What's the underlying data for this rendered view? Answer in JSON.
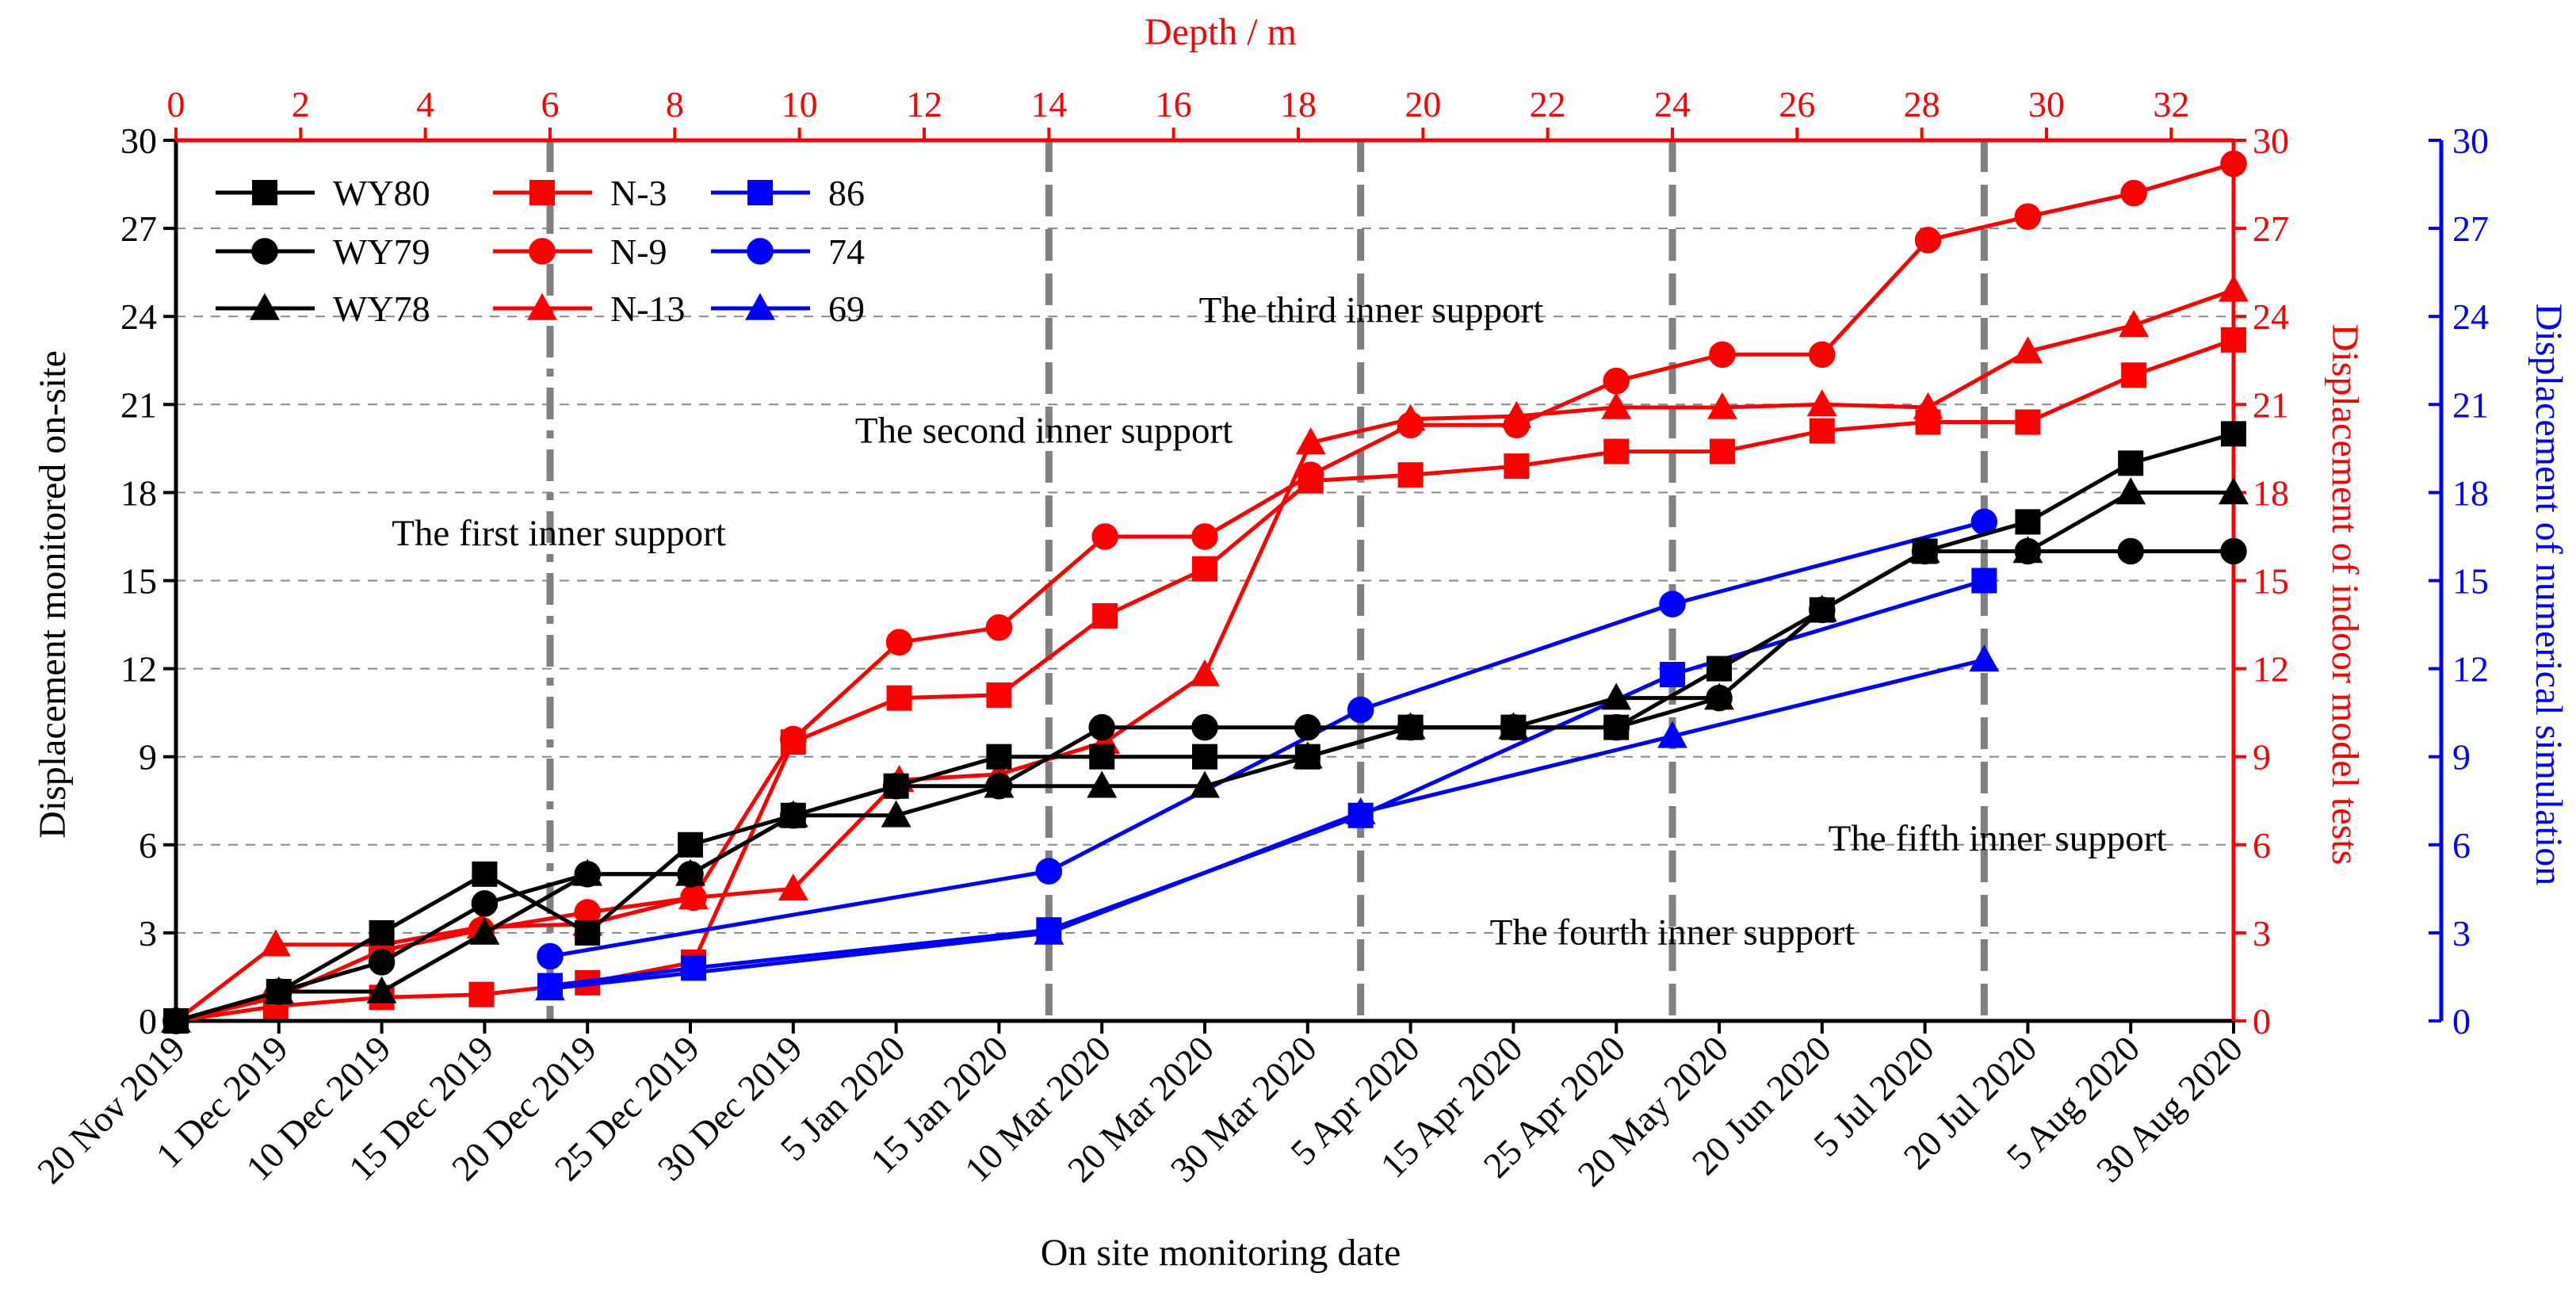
{
  "chart_data": {
    "type": "line",
    "xlabel_bottom": "On site monitoring date",
    "xlabel_top": "Depth / m",
    "ylabel_left": "Displacement monitored on-site",
    "ylabel_right1": "Displacement of indoor model tests",
    "ylabel_right2": "Displacement of numerical simulation",
    "ylim": [
      0,
      30
    ],
    "yticks": [
      0,
      3,
      6,
      9,
      12,
      15,
      18,
      21,
      24,
      27,
      30
    ],
    "grid": "horizontal dashed at every 3 units",
    "legend_position": "top-left",
    "colors": {
      "onsite": "#000000",
      "model": "#ff0000",
      "numerical": "#0000ff",
      "support_line": "#808080",
      "grid": "#888888"
    },
    "categories": [
      "20 Nov 2019",
      "1 Dec 2019",
      "10 Dec 2019",
      "15 Dec 2019",
      "20 Dec 2019",
      "25 Dec 2019",
      "30 Dec 2019",
      "5 Jan 2020",
      "15 Jan 2020",
      "10 Mar 2020",
      "20 Mar 2020",
      "30 Mar 2020",
      "5 Apr 2020",
      "15 Apr 2020",
      "25 Apr 2020",
      "20 May 2020",
      "20 Jun 2020",
      "5 Jul 2020",
      "20 Jul 2020",
      "5 Aug 2020",
      "30 Aug 2020"
    ],
    "depth_range": [
      0,
      33
    ],
    "depth_ticks": [
      0,
      2,
      4,
      6,
      8,
      10,
      12,
      14,
      16,
      18,
      20,
      22,
      24,
      26,
      28,
      30,
      32
    ],
    "onsite_series": [
      {
        "name": "WY80",
        "marker": "square",
        "values": [
          0,
          1,
          3,
          5,
          3,
          6,
          7,
          8,
          9,
          9,
          9,
          9,
          10,
          10,
          10,
          12,
          14,
          16,
          17,
          19,
          20
        ]
      },
      {
        "name": "WY79",
        "marker": "circle",
        "values": [
          0,
          1,
          2,
          4,
          5,
          5,
          7,
          8,
          8,
          10,
          10,
          10,
          10,
          10,
          10,
          11,
          14,
          16,
          16,
          16,
          16
        ]
      },
      {
        "name": "WY78",
        "marker": "triangle",
        "values": [
          0,
          1,
          1,
          3,
          5,
          5,
          7,
          7,
          8,
          8,
          8,
          9,
          10,
          10,
          11,
          11,
          14,
          16,
          16,
          18,
          18
        ]
      }
    ],
    "model_series": [
      {
        "name": "N-3",
        "marker": "square",
        "points": [
          [
            0,
            0
          ],
          [
            1.6,
            0.5
          ],
          [
            3.3,
            0.8
          ],
          [
            4.9,
            0.9
          ],
          [
            6.6,
            1.3
          ],
          [
            8.3,
            2.0
          ],
          [
            9.9,
            9.5
          ],
          [
            11.6,
            11.0
          ],
          [
            13.2,
            11.1
          ],
          [
            14.9,
            13.8
          ],
          [
            16.5,
            15.4
          ],
          [
            18.2,
            18.4
          ],
          [
            19.8,
            18.6
          ],
          [
            21.5,
            18.9
          ],
          [
            23.1,
            19.4
          ],
          [
            24.8,
            19.4
          ],
          [
            26.4,
            20.1
          ],
          [
            28.1,
            20.4
          ],
          [
            29.7,
            20.4
          ],
          [
            31.4,
            22.0
          ],
          [
            33.0,
            23.2
          ]
        ]
      },
      {
        "name": "N-9",
        "marker": "circle",
        "points": [
          [
            0,
            0
          ],
          [
            1.6,
            0.8
          ],
          [
            3.3,
            2.4
          ],
          [
            4.9,
            3.1
          ],
          [
            6.6,
            3.7
          ],
          [
            8.3,
            4.2
          ],
          [
            9.9,
            9.6
          ],
          [
            11.6,
            12.9
          ],
          [
            13.2,
            13.4
          ],
          [
            14.9,
            16.5
          ],
          [
            16.5,
            16.5
          ],
          [
            18.2,
            18.6
          ],
          [
            19.8,
            20.3
          ],
          [
            21.5,
            20.3
          ],
          [
            23.1,
            21.8
          ],
          [
            24.8,
            22.7
          ],
          [
            26.4,
            22.7
          ],
          [
            28.1,
            26.6
          ],
          [
            29.7,
            27.4
          ],
          [
            31.4,
            28.2
          ],
          [
            33.0,
            29.2
          ]
        ]
      },
      {
        "name": "N-13",
        "marker": "triangle",
        "points": [
          [
            0,
            0
          ],
          [
            1.6,
            2.6
          ],
          [
            3.3,
            2.6
          ],
          [
            4.9,
            3.2
          ],
          [
            6.6,
            3.3
          ],
          [
            8.3,
            4.2
          ],
          [
            9.9,
            4.5
          ],
          [
            11.6,
            8.2
          ],
          [
            13.2,
            8.4
          ],
          [
            14.9,
            9.5
          ],
          [
            16.5,
            11.8
          ],
          [
            18.2,
            19.7
          ],
          [
            19.8,
            20.5
          ],
          [
            21.5,
            20.6
          ],
          [
            23.1,
            20.9
          ],
          [
            24.8,
            20.9
          ],
          [
            26.4,
            21.0
          ],
          [
            28.1,
            20.9
          ],
          [
            29.7,
            22.8
          ],
          [
            31.4,
            23.7
          ],
          [
            33.0,
            24.9
          ]
        ]
      }
    ],
    "numerical_series": [
      {
        "name": "86",
        "marker": "square",
        "points": [
          [
            6,
            1.2
          ],
          [
            8.3,
            1.8
          ],
          [
            14,
            3.1
          ],
          [
            19,
            7.0
          ],
          [
            24,
            11.8
          ],
          [
            29,
            15.0
          ]
        ]
      },
      {
        "name": "74",
        "marker": "circle",
        "points": [
          [
            6,
            2.2
          ],
          [
            14,
            5.1
          ],
          [
            19,
            10.6
          ],
          [
            24,
            14.2
          ],
          [
            29,
            17.0
          ]
        ]
      },
      {
        "name": "69",
        "marker": "triangle",
        "points": [
          [
            6,
            1.1
          ],
          [
            14,
            3.0
          ],
          [
            19,
            7.1
          ],
          [
            24,
            9.7
          ],
          [
            29,
            12.3
          ]
        ]
      }
    ],
    "supports": [
      {
        "depth": 6,
        "label": "The first inner support",
        "label_y": 16.2
      },
      {
        "depth": 14,
        "label": "The second inner support",
        "label_y": 19.7
      },
      {
        "depth": 19,
        "label": "The third inner support",
        "label_y": 23.8
      },
      {
        "depth": 24,
        "label": "The fourth inner support",
        "label_y": 2.6
      },
      {
        "depth": 29,
        "label": "The fifth inner support",
        "label_y": 5.8
      }
    ]
  }
}
